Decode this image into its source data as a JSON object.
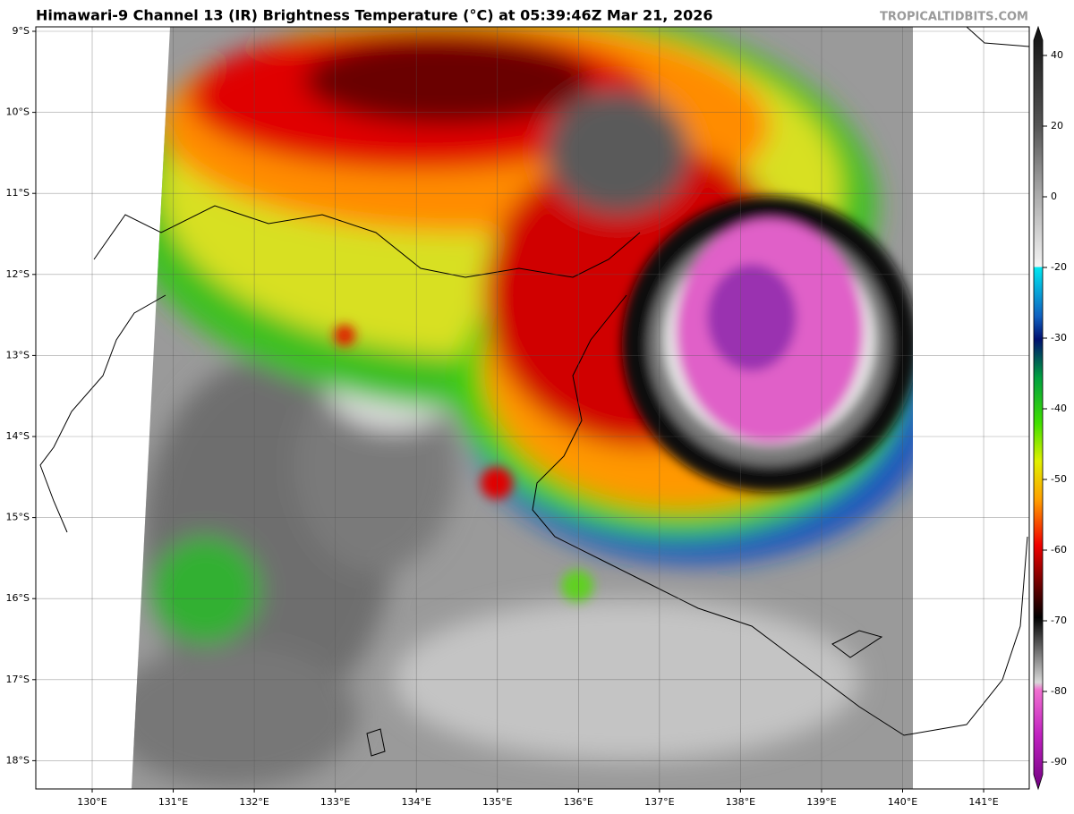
{
  "header": {
    "title": "Himawari-9 Channel 13 (IR) Brightness Temperature (°C) at 05:39:46Z Mar 21, 2026",
    "watermark": "TROPICALTIDBITS.COM"
  },
  "lat_labels": [
    "9°S",
    "10°S",
    "11°S",
    "12°S",
    "13°S",
    "14°S",
    "15°S",
    "16°S",
    "17°S",
    "18°S"
  ],
  "lon_labels": [
    "130°E",
    "131°E",
    "132°E",
    "133°E",
    "134°E",
    "135°E",
    "136°E",
    "137°E",
    "138°E",
    "139°E",
    "140°E",
    "141°E"
  ],
  "colorbar": {
    "ticks": [
      40,
      20,
      0,
      -20,
      -30,
      -40,
      -50,
      -60,
      -70,
      -80,
      -90
    ]
  }
}
